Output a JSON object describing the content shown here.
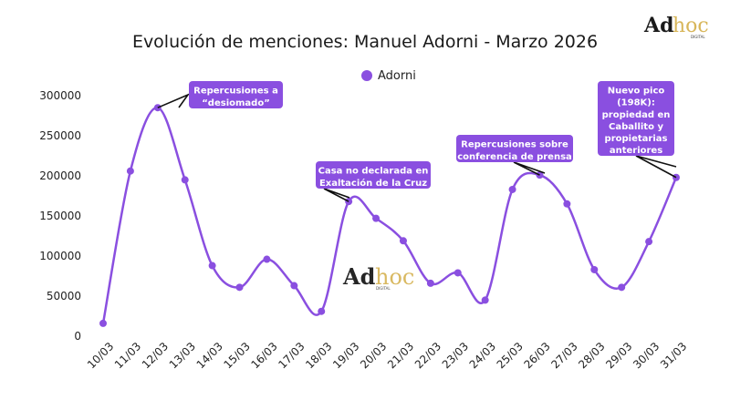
{
  "logo": {
    "ad": "Ad",
    "hoc": "hoc",
    "sub": "DIGITAL"
  },
  "watermark": {
    "ad": "Ad",
    "hoc": "hoc",
    "sub": "DIGITAL"
  },
  "colors": {
    "series": "#8a4fe0",
    "annotation_bg": "#8a4fe0",
    "axis_text": "#222222",
    "logo_gold": "#d8b65a"
  },
  "chart_data": {
    "type": "line",
    "title": "Evolución de menciones: Manuel Adorni - Marzo 2026",
    "legend_position": "top-center",
    "grid": false,
    "ylim": [
      0,
      300000
    ],
    "yticks": [
      0,
      50000,
      100000,
      150000,
      200000,
      250000,
      300000
    ],
    "yticks_labels": [
      "0",
      "50000",
      "100000",
      "150000",
      "200000",
      "250000",
      "300000"
    ],
    "categories": [
      "10/03",
      "11/03",
      "12/03",
      "13/03",
      "14/03",
      "15/03",
      "16/03",
      "17/03",
      "18/03",
      "19/03",
      "20/03",
      "21/03",
      "22/03",
      "23/03",
      "24/03",
      "25/03",
      "26/03",
      "27/03",
      "28/03",
      "29/03",
      "30/03",
      "31/03"
    ],
    "series": [
      {
        "name": "Adorni",
        "values": [
          16000,
          206000,
          285000,
          195000,
          88000,
          61000,
          96000,
          63000,
          31000,
          168000,
          147000,
          119000,
          66000,
          79000,
          45000,
          183000,
          201000,
          165000,
          83000,
          61000,
          118000,
          198000
        ]
      }
    ],
    "annotations": [
      {
        "index": 2,
        "lines": [
          "Repercusiones a",
          "“desiomado”"
        ]
      },
      {
        "index": 9,
        "lines": [
          "Casa no declarada en",
          "Exaltación de la Cruz"
        ]
      },
      {
        "index": 16,
        "lines": [
          "Repercusiones sobre",
          "conferencia de prensa"
        ]
      },
      {
        "index": 21,
        "lines": [
          "Nuevo pico",
          "(198K):",
          "propiedad en",
          "Caballito y",
          "propietarias",
          "anteriores"
        ]
      }
    ]
  }
}
